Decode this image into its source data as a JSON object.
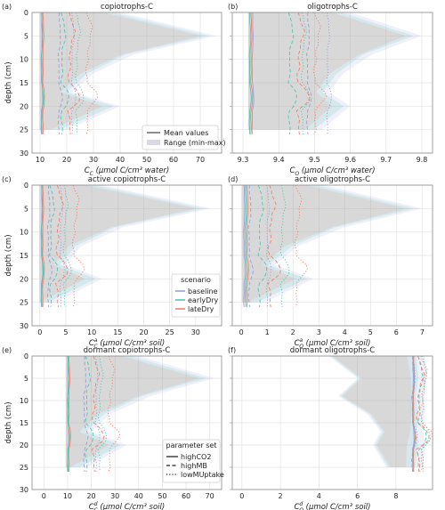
{
  "figure": {
    "ylabel": "depth (cm)",
    "legend_stat": {
      "items": [
        {
          "label": "Mean values",
          "color": "#707070",
          "kind": "line"
        },
        {
          "label": "Range (min-max)",
          "color": "#d9d9e6",
          "kind": "band"
        }
      ]
    },
    "legend_scenario": {
      "title": "scenario",
      "items": [
        {
          "label": "baseline",
          "color": "#9aa0d8"
        },
        {
          "label": "earlyDry",
          "color": "#4fc6ae"
        },
        {
          "label": "lateDry",
          "color": "#f0826a"
        }
      ]
    },
    "legend_param": {
      "title": "parameter set",
      "items": [
        {
          "label": "highCO2",
          "dash": "solid"
        },
        {
          "label": "highMB",
          "dash": "dashed"
        },
        {
          "label": "lowMUptake",
          "dash": "dotted"
        }
      ]
    },
    "colors": {
      "baseline": "#9aa0d8",
      "earlyDry": "#4fc6ae",
      "lateDry": "#f0826a"
    }
  },
  "chart_data": [
    {
      "panel": "(a)",
      "type": "line",
      "title": "copiotrophs-C",
      "xlabel": "C_C (μmol C/cm³ water)",
      "xlabel_main": "C",
      "xlabel_sub": "C",
      "xlabel_unit": " (μmol C/cm³ water)",
      "xlim": [
        7,
        78
      ],
      "xticks": [
        10,
        20,
        30,
        40,
        50,
        60,
        70
      ],
      "ylim": [
        30,
        0
      ],
      "yticks": [
        0,
        5,
        10,
        15,
        20,
        25,
        30
      ],
      "base": {
        "highCO2": 10.5,
        "highMB": 17,
        "lowMUptake": 22
      },
      "scen_offset": {
        "baseline": 0,
        "earlyDry": 1.2,
        "lateDry": 4
      },
      "range_max": [
        40,
        76,
        45,
        30,
        22,
        40,
        20
      ]
    },
    {
      "panel": "(b)",
      "type": "line",
      "title": "oligotrophs-C",
      "xlabel": "C_O (μmol C/cm³ water)",
      "xlabel_main": "C",
      "xlabel_sub": "O",
      "xlabel_unit": " (μmol C/cm³ water)",
      "xlim": [
        9.27,
        9.83
      ],
      "xticks": [
        9.3,
        9.4,
        9.5,
        9.6,
        9.7,
        9.8
      ],
      "ylim": [
        30,
        0
      ],
      "yticks": [
        0,
        5,
        10,
        15,
        20,
        25,
        30
      ],
      "base": {
        "highCO2": 9.32,
        "highMB": 9.44,
        "lowMUptake": 9.48
      },
      "scen_offset": {
        "baseline": 0.04,
        "earlyDry": -0.01,
        "lateDry": 0.015
      },
      "range_max": [
        9.6,
        9.8,
        9.66,
        9.58,
        9.54,
        9.6,
        9.52
      ]
    },
    {
      "panel": "(c)",
      "type": "line",
      "title": "active copiotrophs-C",
      "xlabel": "C_C^a (μmol C/cm³ soil)",
      "xlabel_main": "C",
      "xlabel_sub": "C",
      "xlabel_sup": "a",
      "xlabel_unit": " (μmol C/cm³ soil)",
      "xlim": [
        -1.5,
        35
      ],
      "xticks": [
        0,
        5,
        10,
        15,
        20,
        25,
        30
      ],
      "ylim": [
        30,
        0
      ],
      "yticks": [
        0,
        5,
        10,
        15,
        20,
        25,
        30
      ],
      "base": {
        "highCO2": 0.3,
        "highMB": 1.6,
        "lowMUptake": 4
      },
      "scen_offset": {
        "baseline": 0,
        "earlyDry": 0.5,
        "lateDry": 1.8
      },
      "range_max": [
        12,
        33,
        16,
        8,
        5,
        12,
        3
      ]
    },
    {
      "panel": "(d)",
      "type": "line",
      "title": "active oligotrophs-C",
      "xlabel": "C_O^a (μmol C/cm³ soil)",
      "xlabel_main": "C",
      "xlabel_sub": "O",
      "xlabel_sup": "a",
      "xlabel_unit": " (μmol C/cm³ soil)",
      "xlim": [
        -0.35,
        7.4
      ],
      "xticks": [
        0,
        1,
        2,
        3,
        4,
        5,
        6,
        7
      ],
      "ylim": [
        30,
        0
      ],
      "yticks": [
        0,
        5,
        10,
        15,
        20,
        25,
        30
      ],
      "base": {
        "highCO2": 0.1,
        "highMB": 0.3,
        "lowMUptake": 1.0
      },
      "scen_offset": {
        "baseline": 0,
        "earlyDry": 0.4,
        "lateDry": 0.8
      },
      "range_max": [
        3.2,
        7.0,
        4.0,
        2.2,
        1.3,
        2.8,
        0.9
      ]
    },
    {
      "panel": "(e)",
      "type": "line",
      "title": "dormant copiotrophs-C",
      "xlabel": "C_C^d (μmol C/cm³ soil)",
      "xlabel_main": "C",
      "xlabel_sub": "C",
      "xlabel_sup": "d",
      "xlabel_unit": " (μmol C/cm³ soil)",
      "xlim": [
        -5,
        75
      ],
      "xticks": [
        0,
        10,
        20,
        30,
        40,
        50,
        60,
        70
      ],
      "ylim": [
        30,
        0
      ],
      "yticks": [
        0,
        5,
        10,
        15,
        20,
        25,
        30
      ],
      "base": {
        "highCO2": 10,
        "highMB": 17,
        "lowMUptake": 22
      },
      "scen_offset": {
        "baseline": 0,
        "earlyDry": 1,
        "lateDry": 4
      },
      "range_max": [
        40,
        72,
        45,
        28,
        20,
        35,
        18
      ]
    },
    {
      "panel": "(f)",
      "type": "line",
      "title": "dormant oligotrophs-C",
      "xlabel": "C_O^d (μmol C/cm³ soil)",
      "xlabel_main": "C",
      "xlabel_sub": "O",
      "xlabel_sup": "d",
      "xlabel_unit": " (μmol C/cm³ soil)",
      "xlim": [
        -0.5,
        9.9
      ],
      "xticks": [
        0,
        2,
        4,
        6,
        8
      ],
      "ylim": [
        30,
        0
      ],
      "yticks": [
        0,
        5,
        10,
        15,
        20,
        25,
        30
      ],
      "base": {
        "highCO2": 8.9,
        "highMB": 9.1,
        "lowMUptake": 9.25
      },
      "scen_offset": {
        "baseline": -0.25,
        "earlyDry": 0.1,
        "lateDry": 0.05
      },
      "range_min": [
        4.5,
        6.0,
        5.0,
        6.5,
        7.2,
        6.8,
        7.5
      ],
      "range_max": [
        9.5,
        9.6,
        9.5,
        9.5,
        9.4,
        9.5,
        9.4
      ]
    }
  ]
}
